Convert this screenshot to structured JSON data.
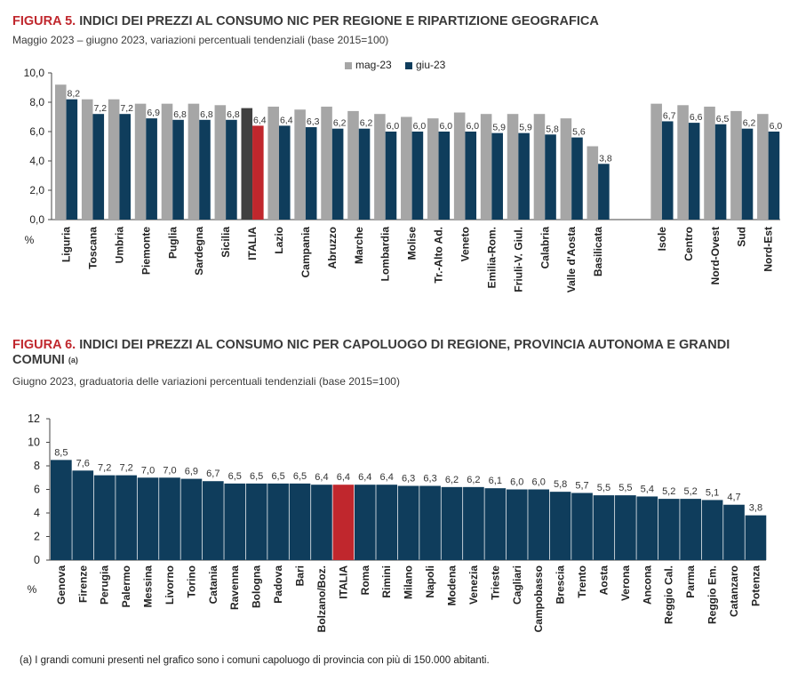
{
  "figure5": {
    "number": "FIGURA 5.",
    "title": "INDICI DEI PREZZI AL CONSUMO NIC PER REGIONE E RIPARTIZIONE GEOGRAFICA",
    "subtitle": "Maggio 2023 – giugno 2023, variazioni percentuali tendenziali (base 2015=100)"
  },
  "figure6": {
    "number": "FIGURA 6.",
    "title": "INDICI DEI PREZZI AL CONSUMO NIC PER CAPOLUOGO DI REGIONE, PROVINCIA AUTONOMA E GRANDI COMUNI",
    "title_note": "(a)",
    "subtitle": "Giugno 2023, graduatoria delle variazioni percentuali tendenziali (base 2015=100)"
  },
  "footnote": "(a)  I grandi comuni presenti nel grafico sono i comuni capoluogo di provincia con più di 150.000 abitanti.",
  "colors": {
    "may": "#a6a6a6",
    "june": "#0f3d5c",
    "italia_may": "#404040",
    "italia_june": "#c0272d"
  },
  "chart_data": [
    {
      "type": "bar",
      "ylabel": "%",
      "ylim": [
        0,
        10
      ],
      "yticks": [
        "0,0",
        "2,0",
        "4,0",
        "6,0",
        "8,0",
        "10,0"
      ],
      "legend_position": "top-center",
      "highlight": "ITALIA",
      "gap_before": "Isole",
      "categories": [
        "Liguria",
        "Toscana",
        "Umbria",
        "Piemonte",
        "Puglia",
        "Sardegna",
        "Sicilia",
        "ITALIA",
        "Lazio",
        "Campania",
        "Abruzzo",
        "Marche",
        "Lombardia",
        "Molise",
        "Tr.-Alto Ad.",
        "Veneto",
        "Emilia-Rom.",
        "Friuli-V. Giul.",
        "Calabria",
        "Valle d'Aosta",
        "Basilicata",
        "Isole",
        "Centro",
        "Nord-Ovest",
        "Sud",
        "Nord-Est"
      ],
      "series": [
        {
          "name": "mag-23",
          "values": [
            9.2,
            8.2,
            8.2,
            7.9,
            7.9,
            7.9,
            7.8,
            7.6,
            7.7,
            7.5,
            7.7,
            7.4,
            7.2,
            7.0,
            6.9,
            7.3,
            7.2,
            7.2,
            7.2,
            6.9,
            5.0,
            7.9,
            7.8,
            7.7,
            7.4,
            7.2
          ],
          "labels": [
            "",
            "",
            "",
            "",
            "",
            "",
            "",
            "",
            "",
            "",
            "",
            "",
            "",
            "",
            "",
            "",
            "",
            "",
            "",
            "",
            "",
            "",
            "",
            "",
            "",
            ""
          ]
        },
        {
          "name": "giu-23",
          "values": [
            8.2,
            7.2,
            7.2,
            6.9,
            6.8,
            6.8,
            6.8,
            6.4,
            6.4,
            6.3,
            6.2,
            6.2,
            6.0,
            6.0,
            6.0,
            6.0,
            5.9,
            5.9,
            5.8,
            5.6,
            3.8,
            6.7,
            6.6,
            6.5,
            6.2,
            6.0
          ],
          "labels": [
            "8,2",
            "7,2",
            "7,2",
            "6,9",
            "6,8",
            "6,8",
            "6,8",
            "6,4",
            "6,4",
            "6,3",
            "6,2",
            "6,2",
            "6,0",
            "6,0",
            "6,0",
            "6,0",
            "5,9",
            "5,9",
            "5,8",
            "5,6",
            "3,8",
            "6,7",
            "6,6",
            "6,5",
            "6,2",
            "6,0"
          ]
        }
      ]
    },
    {
      "type": "bar",
      "ylabel": "%",
      "ylim": [
        0,
        12
      ],
      "yticks": [
        "0",
        "2",
        "4",
        "6",
        "8",
        "10",
        "12"
      ],
      "highlight": "ITALIA",
      "categories": [
        "Genova",
        "Firenze",
        "Perugia",
        "Palermo",
        "Messina",
        "Livorno",
        "Torino",
        "Catania",
        "Ravenna",
        "Bologna",
        "Padova",
        "Bari",
        "Bolzano/Boz.",
        "ITALIA",
        "Roma",
        "Rimini",
        "Milano",
        "Napoli",
        "Modena",
        "Venezia",
        "Trieste",
        "Cagliari",
        "Campobasso",
        "Brescia",
        "Trento",
        "Aosta",
        "Verona",
        "Ancona",
        "Reggio Cal.",
        "Parma",
        "Reggio Em.",
        "Catanzaro",
        "Potenza"
      ],
      "values": [
        8.5,
        7.6,
        7.2,
        7.2,
        7.0,
        7.0,
        6.9,
        6.7,
        6.5,
        6.5,
        6.5,
        6.5,
        6.4,
        6.4,
        6.4,
        6.4,
        6.3,
        6.3,
        6.2,
        6.2,
        6.1,
        6.0,
        6.0,
        5.8,
        5.7,
        5.5,
        5.5,
        5.4,
        5.2,
        5.2,
        5.1,
        4.7,
        3.8
      ],
      "labels": [
        "8,5",
        "7,6",
        "7,2",
        "7,2",
        "7,0",
        "7,0",
        "6,9",
        "6,7",
        "6,5",
        "6,5",
        "6,5",
        "6,5",
        "6,4",
        "6,4",
        "6,4",
        "6,4",
        "6,3",
        "6,3",
        "6,2",
        "6,2",
        "6,1",
        "6,0",
        "6,0",
        "5,8",
        "5,7",
        "5,5",
        "5,5",
        "5,4",
        "5,2",
        "5,2",
        "5,1",
        "4,7",
        "3,8"
      ]
    }
  ]
}
